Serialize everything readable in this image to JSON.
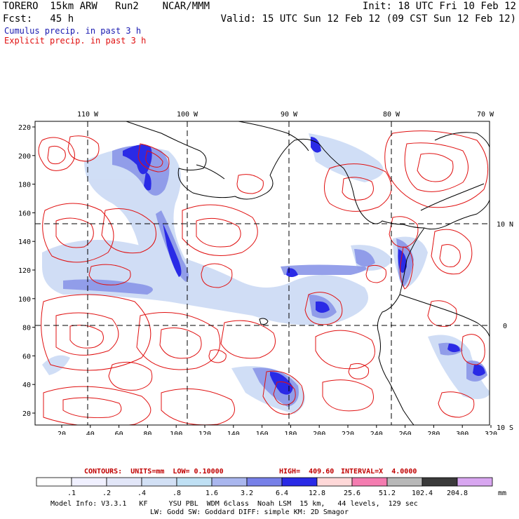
{
  "header": {
    "model": "TORERO  15km ARW   Run2    NCAR/MMM",
    "init": "Init: 18 UTC Fri 10 Feb 12",
    "fcst": "Fcst:   45 h",
    "valid": "Valid: 15 UTC Sun 12 Feb 12 (09 CST Sun 12 Feb 12)"
  },
  "legend": {
    "cumulus": "Cumulus precip. in past 3 h",
    "explicit": "Explicit precip. in past 3 h"
  },
  "colors": {
    "cumulus_text": "#1a1ab0",
    "explicit_text": "#e01010",
    "contour": "#e01010",
    "coast": "#000000"
  },
  "map": {
    "lon_labels": [
      "110 W",
      "100 W",
      "90 W",
      "80 W",
      "70 W"
    ],
    "lat_labels": [
      "10 N",
      "0",
      "10 S"
    ],
    "y_ticks": [
      "220",
      "200",
      "180",
      "160",
      "140",
      "120",
      "100",
      "80",
      "60",
      "40",
      "20"
    ],
    "x_ticks": [
      "20",
      "40",
      "60",
      "80",
      "100",
      "120",
      "140",
      "160",
      "180",
      "200",
      "220",
      "240",
      "260",
      "280",
      "300",
      "320"
    ]
  },
  "contours": {
    "units": "CONTOURS:  UNITS=mm  LOW= 0.10000",
    "high": "HIGH=  409.60",
    "interval": "INTERVAL=X  4.0000"
  },
  "colorbar": {
    "labels": [
      ".1",
      ".2",
      ".4",
      ".8",
      "1.6",
      "3.2",
      "6.4",
      "12.8",
      "25.6",
      "51.2",
      "102.4",
      "204.8"
    ],
    "unit": "mm",
    "colors": [
      "#ffffff",
      "#f0f0ff",
      "#e2e6f8",
      "#d2e0f5",
      "#bfe0f4",
      "#a9b6ee",
      "#7780e8",
      "#2a2ae6",
      "#ffd8d8",
      "#f47cb0",
      "#b8b8b8",
      "#3a3a3a",
      "#d8a6f0"
    ]
  },
  "model_info": {
    "line1": "Model Info: V3.3.1   KF     YSU PBL  WDM 6class  Noah LSM  15 km,   44 levels,  129 sec",
    "line2": "LW: Godd SW: Goddard DIFF: simple KM: 2D Smagor"
  }
}
